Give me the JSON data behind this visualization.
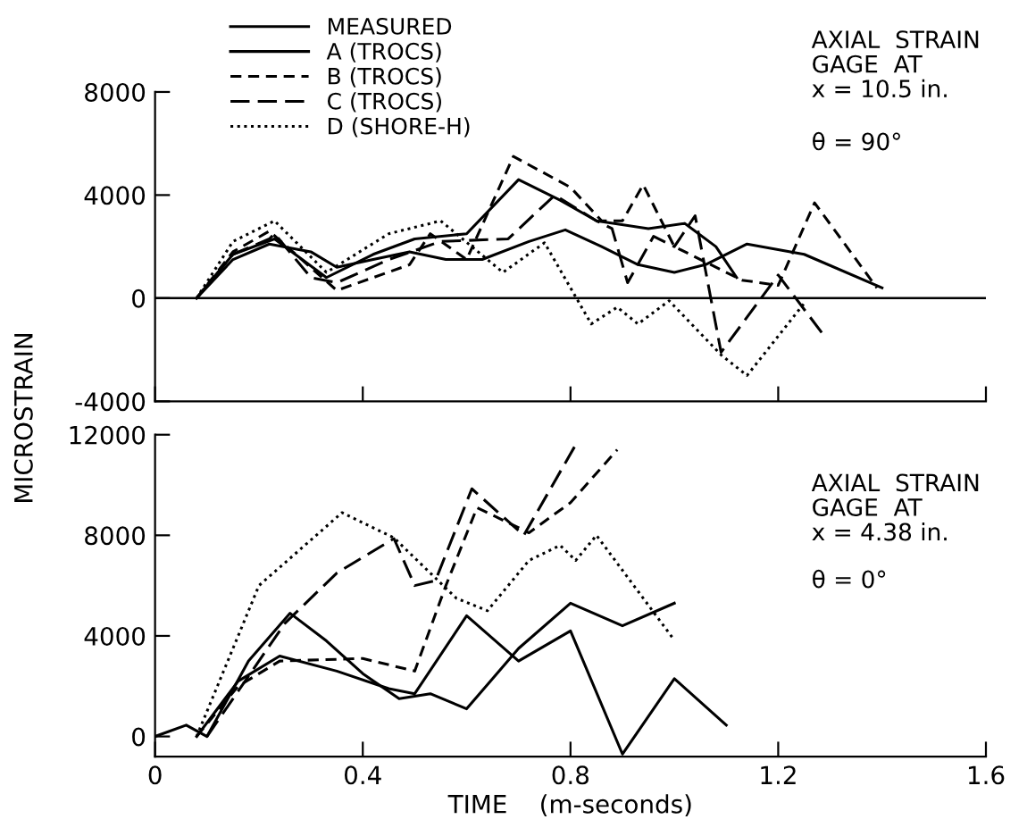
{
  "chart_data": [
    {
      "type": "line",
      "ylabel": "MICROSTRAIN",
      "xlim": [
        0,
        1.6
      ],
      "xticks": [
        0,
        0.4,
        0.8,
        1.2,
        1.6
      ],
      "ylim": [
        -4000,
        8000
      ],
      "yticks": [
        -4000,
        0,
        4000,
        8000
      ],
      "tick_labels": "y",
      "grid": false,
      "legend": "top left",
      "marker": "none",
      "ref_lines": [
        {
          "axis": "y",
          "value": 0,
          "color": "#000000",
          "line_style": "solid"
        }
      ],
      "annotations": [
        "AXIAL  STRAIN\nGAGE  AT\nx = 10.5 in.",
        "θ = 90°"
      ],
      "series": [
        {
          "name": "MEASURED",
          "color": "#000000",
          "line_style": "solid",
          "x": [
            0.08,
            0.15,
            0.22,
            0.3,
            0.35,
            0.42,
            0.49,
            0.56,
            0.63,
            0.72,
            0.79,
            0.86,
            0.93,
            1.0,
            1.06,
            1.14,
            1.25,
            1.4
          ],
          "values": [
            0,
            1500,
            2100,
            1800,
            1200,
            1500,
            1800,
            1500,
            1500,
            2200,
            2650,
            2000,
            1300,
            1000,
            1300,
            2100,
            1700,
            400
          ]
        },
        {
          "name": "A (TROCS)",
          "color": "#000000",
          "line_style": "solid",
          "x": [
            0.08,
            0.15,
            0.23,
            0.33,
            0.42,
            0.5,
            0.6,
            0.7,
            0.78,
            0.85,
            0.95,
            1.02,
            1.08,
            1.12
          ],
          "values": [
            0,
            1700,
            2300,
            800,
            1700,
            2300,
            2500,
            4600,
            3800,
            3000,
            2700,
            2900,
            2000,
            800
          ]
        },
        {
          "name": "B (TROCS)",
          "color": "#000000",
          "line_style": "dashed",
          "x": [
            0.08,
            0.15,
            0.22,
            0.35,
            0.49,
            0.53,
            0.6,
            0.69,
            0.8,
            0.86,
            0.9,
            0.94,
            1.0,
            1.13,
            1.2,
            1.27,
            1.39
          ],
          "values": [
            0,
            1800,
            2600,
            300,
            1300,
            2500,
            1500,
            5500,
            4300,
            3000,
            3000,
            4400,
            2000,
            700,
            500,
            3700,
            400
          ]
        },
        {
          "name": "C (TROCS)",
          "color": "#000000",
          "line_style": "long dashed",
          "x": [
            0.08,
            0.15,
            0.22,
            0.23,
            0.3,
            0.35,
            0.45,
            0.55,
            0.68,
            0.77,
            0.85,
            0.88,
            0.91,
            0.96,
            1.0,
            1.04,
            1.09,
            1.2,
            1.29
          ],
          "values": [
            0,
            1700,
            2300,
            2500,
            800,
            600,
            1500,
            2200,
            2300,
            4000,
            3000,
            2700,
            600,
            2400,
            2000,
            3200,
            -2100,
            900,
            -1500
          ]
        },
        {
          "name": "D (SHORE-H)",
          "color": "#000000",
          "line_style": "dotted",
          "x": [
            0.08,
            0.15,
            0.23,
            0.33,
            0.45,
            0.55,
            0.67,
            0.75,
            0.84,
            0.89,
            0.93,
            0.99,
            1.09,
            1.14,
            1.25
          ],
          "values": [
            0,
            2200,
            3000,
            1000,
            2500,
            3000,
            1000,
            2150,
            -1000,
            -350,
            -1000,
            -100,
            -2200,
            -3000,
            -200
          ]
        }
      ]
    },
    {
      "type": "line",
      "xlabel": "TIME    (m-seconds)",
      "xlim": [
        0,
        1.6
      ],
      "xticks": [
        0,
        0.4,
        0.8,
        1.2,
        1.6
      ],
      "ylim": [
        -800,
        12000
      ],
      "yticks": [
        0,
        4000,
        8000,
        12000
      ],
      "grid": false,
      "legend": false,
      "marker": "none",
      "annotations": [
        "AXIAL  STRAIN\nGAGE  AT\nx = 4.38 in.",
        "θ = 0°"
      ],
      "series": [
        {
          "color": "#000000",
          "line_style": "solid",
          "x": [
            0,
            0.06,
            0.1,
            0.18,
            0.26,
            0.33,
            0.4,
            0.47,
            0.53,
            0.6,
            0.7,
            0.8,
            0.9,
            1.0
          ],
          "values": [
            0,
            450,
            0,
            3000,
            4900,
            3800,
            2500,
            1500,
            1700,
            1100,
            3500,
            5300,
            4400,
            5300
          ]
        },
        {
          "color": "#000000",
          "line_style": "solid",
          "x": [
            0.08,
            0.16,
            0.24,
            0.35,
            0.45,
            0.5,
            0.6,
            0.7,
            0.8,
            0.9,
            1.0,
            1.1
          ],
          "values": [
            0,
            2200,
            3200,
            2600,
            1900,
            1700,
            4800,
            3000,
            4200,
            -700,
            2300,
            450
          ]
        },
        {
          "color": "#000000",
          "line_style": "dashed",
          "x": [
            0.08,
            0.16,
            0.24,
            0.4,
            0.5,
            0.56,
            0.62,
            0.72,
            0.8,
            0.89
          ],
          "values": [
            0,
            2000,
            3000,
            3100,
            2600,
            6000,
            9100,
            8100,
            9300,
            11400
          ]
        },
        {
          "color": "#000000",
          "line_style": "long dashed",
          "x": [
            0.1,
            0.25,
            0.35,
            0.46,
            0.5,
            0.54,
            0.61,
            0.71,
            0.81
          ],
          "values": [
            0,
            4500,
            6500,
            7870,
            6000,
            6200,
            9850,
            8000,
            11600
          ]
        },
        {
          "color": "#000000",
          "line_style": "dotted",
          "x": [
            0.08,
            0.2,
            0.36,
            0.46,
            0.58,
            0.64,
            0.72,
            0.78,
            0.81,
            0.85,
            1.0
          ],
          "values": [
            0,
            6000,
            8900,
            7900,
            5500,
            5000,
            7000,
            7600,
            7000,
            8000,
            3830
          ]
        }
      ]
    }
  ]
}
